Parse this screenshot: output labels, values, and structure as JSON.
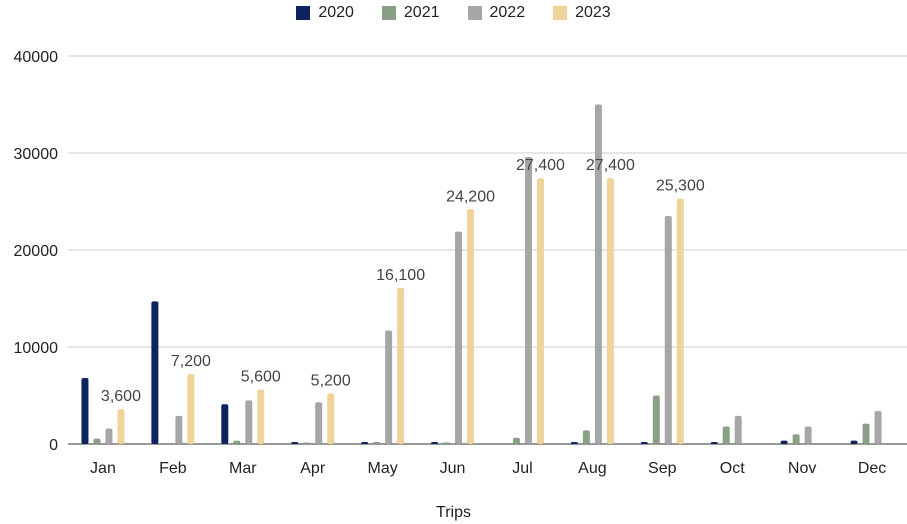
{
  "chart_data": {
    "type": "bar",
    "categories": [
      "Jan",
      "Feb",
      "Mar",
      "Apr",
      "May",
      "Jun",
      "Jul",
      "Aug",
      "Sep",
      "Oct",
      "Nov",
      "Dec"
    ],
    "series": [
      {
        "name": "2020",
        "color": "#0d2461",
        "values": [
          6800,
          14700,
          4100,
          200,
          200,
          200,
          0,
          200,
          200,
          200,
          350,
          350
        ]
      },
      {
        "name": "2021",
        "color": "#8aa086",
        "values": [
          550,
          0,
          350,
          150,
          200,
          150,
          650,
          1400,
          5000,
          1800,
          1000,
          2100
        ]
      },
      {
        "name": "2022",
        "color": "#a6a6a6",
        "values": [
          1600,
          2900,
          4500,
          4300,
          11700,
          21900,
          29600,
          35000,
          23500,
          2900,
          1800,
          3400
        ]
      },
      {
        "name": "2023",
        "color": "#f0d39b",
        "values": [
          3600,
          7200,
          5600,
          5200,
          16100,
          24200,
          27400,
          27400,
          25300,
          null,
          null,
          null
        ],
        "labels": [
          "3,600",
          "7,200",
          "5,600",
          "5,200",
          "16,100",
          "24,200",
          "27,400",
          "27,400",
          "25,300",
          "",
          "",
          ""
        ]
      }
    ],
    "xlabel": "Trips",
    "ylabel": "",
    "ylim": [
      0,
      40000
    ],
    "yticks": [
      "0",
      "10000",
      "20000",
      "30000",
      "40000"
    ],
    "grid": true,
    "legend": "top-center"
  }
}
